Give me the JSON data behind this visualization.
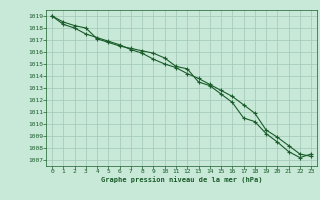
{
  "title": "Graphe pression niveau de la mer (hPa)",
  "bg_color": "#c8e8d8",
  "grid_color": "#a0c8b8",
  "line_color": "#1a5c2a",
  "xlim": [
    -0.5,
    23.5
  ],
  "ylim": [
    1006.5,
    1019.5
  ],
  "xticks": [
    0,
    1,
    2,
    3,
    4,
    5,
    6,
    7,
    8,
    9,
    10,
    11,
    12,
    13,
    14,
    15,
    16,
    17,
    18,
    19,
    20,
    21,
    22,
    23
  ],
  "yticks": [
    1007,
    1008,
    1009,
    1010,
    1011,
    1012,
    1013,
    1014,
    1015,
    1016,
    1017,
    1018,
    1019
  ],
  "line1": [
    1019.0,
    1018.5,
    1018.2,
    1018.0,
    1017.1,
    1016.8,
    1016.5,
    1016.3,
    1016.1,
    1015.9,
    1015.5,
    1014.8,
    1014.6,
    1013.5,
    1013.2,
    1012.5,
    1011.8,
    1010.5,
    1010.2,
    1009.2,
    1008.5,
    1007.7,
    1007.2,
    1007.5
  ],
  "line2": [
    1019.0,
    1018.3,
    1018.0,
    1017.5,
    1017.2,
    1016.9,
    1016.6,
    1016.2,
    1015.9,
    1015.4,
    1015.0,
    1014.7,
    1014.2,
    1013.8,
    1013.3,
    1012.8,
    1012.3,
    1011.6,
    1010.9,
    1009.5,
    1008.9,
    1008.2,
    1007.5,
    1007.3
  ]
}
